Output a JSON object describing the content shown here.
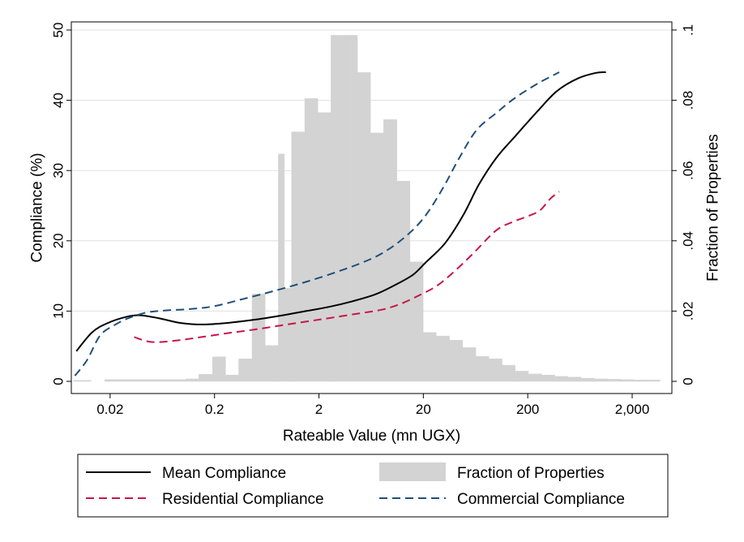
{
  "chart_data": {
    "type": "line",
    "title": "",
    "xlabel": "Rateable Value (mn UGX)",
    "ylabel_left": "Compliance (%)",
    "ylabel_right": "Fraction of Properties",
    "x_scale": "log10",
    "x_ticks": [
      {
        "value": 0.02,
        "label": "0.02"
      },
      {
        "value": 0.2,
        "label": "0.2"
      },
      {
        "value": 2,
        "label": "2"
      },
      {
        "value": 20,
        "label": "20"
      },
      {
        "value": 200,
        "label": "200"
      },
      {
        "value": 2000,
        "label": "2,000"
      }
    ],
    "xlim": [
      0.0085,
      4800
    ],
    "ylim_left": [
      0,
      50
    ],
    "ylim_right": [
      0,
      0.1
    ],
    "y_ticks_left": [
      {
        "value": 0,
        "label": "0"
      },
      {
        "value": 10,
        "label": "10"
      },
      {
        "value": 20,
        "label": "20"
      },
      {
        "value": 30,
        "label": "30"
      },
      {
        "value": 40,
        "label": "40"
      },
      {
        "value": 50,
        "label": "50"
      }
    ],
    "y_ticks_right": [
      {
        "value": 0,
        "label": "0"
      },
      {
        "value": 0.02,
        "label": ".02"
      },
      {
        "value": 0.04,
        "label": ".04"
      },
      {
        "value": 0.06,
        "label": ".06"
      },
      {
        "value": 0.08,
        "label": ".08"
      },
      {
        "value": 0.1,
        "label": ".1"
      }
    ],
    "grid": true,
    "legend_position": "bottom",
    "colors": {
      "mean": "#000000",
      "residential": "#c8144b",
      "commercial": "#1f4e79",
      "histogram": "#d3d3d3",
      "grid": "#e0e0e0",
      "frame": "#000000"
    },
    "histogram": {
      "name": "Fraction of Properties",
      "bins": [
        {
          "x0": 0.0089,
          "x1": 0.0131,
          "value": 0.0003
        },
        {
          "x0": 0.0178,
          "x1": 0.1058,
          "value": 0.0005
        },
        {
          "x0": 0.1058,
          "x1": 0.1415,
          "value": 0.0007
        },
        {
          "x0": 0.1415,
          "x1": 0.1915,
          "value": 0.002
        },
        {
          "x0": 0.1915,
          "x1": 0.2552,
          "value": 0.007
        },
        {
          "x0": 0.2552,
          "x1": 0.3409,
          "value": 0.0018
        },
        {
          "x0": 0.3409,
          "x1": 0.4576,
          "value": 0.0064
        },
        {
          "x0": 0.4576,
          "x1": 0.6103,
          "value": 0.0249
        },
        {
          "x0": 0.6103,
          "x1": 0.8172,
          "value": 0.0102
        },
        {
          "x0": 0.8172,
          "x1": 0.9326,
          "value": 0.0647
        },
        {
          "x0": 0.9326,
          "x1": 1.0925,
          "value": 0.0265
        },
        {
          "x0": 1.0925,
          "x1": 1.4627,
          "value": 0.071
        },
        {
          "x0": 1.4627,
          "x1": 1.9512,
          "value": 0.0805
        },
        {
          "x0": 1.9512,
          "x1": 2.6082,
          "value": 0.0765
        },
        {
          "x0": 2.6082,
          "x1": 3.4916,
          "value": 0.0985
        },
        {
          "x0": 3.4916,
          "x1": 4.6733,
          "value": 0.0985
        },
        {
          "x0": 4.6733,
          "x1": 6.2375,
          "value": 0.0879
        },
        {
          "x0": 6.2375,
          "x1": 8.3333,
          "value": 0.0707
        },
        {
          "x0": 8.3333,
          "x1": 11.1418,
          "value": 0.0745
        },
        {
          "x0": 11.1418,
          "x1": 14.8904,
          "value": 0.057
        },
        {
          "x0": 14.8904,
          "x1": 19.9054,
          "value": 0.034
        },
        {
          "x0": 19.9054,
          "x1": 26.6014,
          "value": 0.0139
        },
        {
          "x0": 26.6014,
          "x1": 35.5689,
          "value": 0.0129
        },
        {
          "x0": 35.5689,
          "x1": 47.5281,
          "value": 0.0117
        },
        {
          "x0": 47.5281,
          "x1": 63.5292,
          "value": 0.0096
        },
        {
          "x0": 63.5292,
          "x1": 84.9233,
          "value": 0.0071
        },
        {
          "x0": 84.9233,
          "x1": 113.5271,
          "value": 0.0064
        },
        {
          "x0": 113.5271,
          "x1": 151.7646,
          "value": 0.0046
        },
        {
          "x0": 151.7646,
          "x1": 202.87,
          "value": 0.0029
        },
        {
          "x0": 202.87,
          "x1": 271.2297,
          "value": 0.0021
        },
        {
          "x0": 271.2297,
          "x1": 362.5655,
          "value": 0.0018
        },
        {
          "x0": 362.5655,
          "x1": 484.7055,
          "value": 0.0014
        },
        {
          "x0": 484.7055,
          "x1": 647.8895,
          "value": 0.0012
        },
        {
          "x0": 647.8895,
          "x1": 866.2086,
          "value": 0.0009
        },
        {
          "x0": 866.2086,
          "x1": 1157.7446,
          "value": 0.0007
        },
        {
          "x0": 1157.7446,
          "x1": 1548.0,
          "value": 0.0006
        },
        {
          "x0": 1548.0,
          "x1": 2069.3,
          "value": 0.0005
        },
        {
          "x0": 2069.3,
          "x1": 2766.0,
          "value": 0.0004
        },
        {
          "x0": 2766.0,
          "x1": 3698.0,
          "value": 0.0004
        }
      ]
    },
    "series": [
      {
        "name": "Mean Compliance",
        "style": "solid",
        "points": [
          [
            0.0095,
            4.3
          ],
          [
            0.0135,
            7.0
          ],
          [
            0.019,
            8.3
          ],
          [
            0.029,
            9.2
          ],
          [
            0.039,
            9.4
          ],
          [
            0.058,
            9.0
          ],
          [
            0.095,
            8.3
          ],
          [
            0.16,
            8.1
          ],
          [
            0.3,
            8.4
          ],
          [
            0.5,
            8.8
          ],
          [
            0.9,
            9.4
          ],
          [
            1.5,
            10.0
          ],
          [
            2.5,
            10.6
          ],
          [
            4.2,
            11.4
          ],
          [
            7.0,
            12.4
          ],
          [
            11.0,
            13.8
          ],
          [
            16.0,
            15.2
          ],
          [
            21.0,
            16.9
          ],
          [
            32.0,
            19.6
          ],
          [
            48.0,
            23.6
          ],
          [
            68.0,
            28.0
          ],
          [
            100.0,
            31.8
          ],
          [
            150.0,
            34.8
          ],
          [
            250.0,
            38.5
          ],
          [
            380.0,
            41.3
          ],
          [
            600.0,
            43.1
          ],
          [
            900.0,
            43.9
          ],
          [
            1120.0,
            44.0
          ]
        ]
      },
      {
        "name": "Residential Compliance",
        "style": "dashed",
        "points": [
          [
            0.034,
            6.3
          ],
          [
            0.05,
            5.6
          ],
          [
            0.085,
            5.8
          ],
          [
            0.15,
            6.3
          ],
          [
            0.28,
            6.9
          ],
          [
            0.5,
            7.4
          ],
          [
            0.9,
            8.0
          ],
          [
            1.5,
            8.5
          ],
          [
            2.5,
            9.0
          ],
          [
            5.0,
            9.7
          ],
          [
            8.0,
            10.2
          ],
          [
            12.0,
            11.0
          ],
          [
            18.0,
            12.2
          ],
          [
            27.0,
            13.6
          ],
          [
            40.0,
            15.7
          ],
          [
            60.0,
            18.2
          ],
          [
            100.0,
            21.5
          ],
          [
            150.0,
            22.8
          ],
          [
            200.0,
            23.5
          ],
          [
            260.0,
            24.3
          ],
          [
            330.0,
            26.0
          ],
          [
            400.0,
            27.0
          ]
        ]
      },
      {
        "name": "Commercial Compliance",
        "style": "dashed",
        "points": [
          [
            0.0092,
            0.8
          ],
          [
            0.012,
            3.0
          ],
          [
            0.016,
            6.5
          ],
          [
            0.022,
            8.0
          ],
          [
            0.03,
            9.0
          ],
          [
            0.045,
            9.8
          ],
          [
            0.07,
            10.1
          ],
          [
            0.12,
            10.3
          ],
          [
            0.2,
            10.7
          ],
          [
            0.35,
            11.6
          ],
          [
            0.6,
            12.5
          ],
          [
            1.0,
            13.4
          ],
          [
            1.7,
            14.4
          ],
          [
            3.0,
            15.6
          ],
          [
            5.0,
            16.8
          ],
          [
            8.0,
            18.2
          ],
          [
            13.0,
            20.4
          ],
          [
            20.0,
            23.2
          ],
          [
            30.0,
            27.2
          ],
          [
            45.0,
            32.0
          ],
          [
            65.0,
            35.8
          ],
          [
            100.0,
            38.2
          ],
          [
            150.0,
            40.3
          ],
          [
            250.0,
            42.4
          ],
          [
            400.0,
            44.0
          ]
        ]
      }
    ],
    "legend": {
      "mean": "Mean Compliance",
      "histogram": "Fraction of Properties",
      "residential": "Residential Compliance",
      "commercial": "Commercial Compliance"
    }
  }
}
